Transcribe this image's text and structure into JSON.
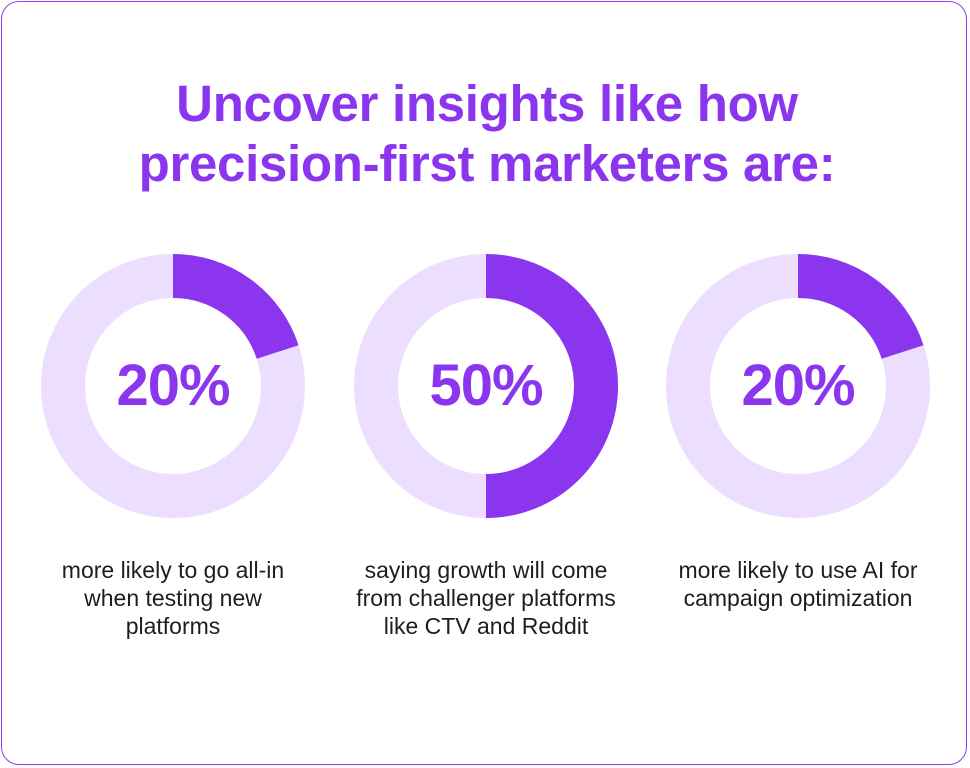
{
  "title": {
    "line1": "Uncover insights like how",
    "line2": "precision-first marketers are:"
  },
  "colors": {
    "accent": "#8b35ee",
    "track": "#ecdefe",
    "text": "#1d1d24",
    "border": "#8a3ff0"
  },
  "chart_data": {
    "type": "pie",
    "variant": "donut",
    "items": [
      {
        "value": 20,
        "label": "20%",
        "caption": "more likely to go all-in when testing new platforms"
      },
      {
        "value": 50,
        "label": "50%",
        "caption": "saying growth will come from challenger platforms like CTV and Reddit"
      },
      {
        "value": 20,
        "label": "20%",
        "caption": "more likely to use AI for campaign optimization"
      }
    ]
  }
}
